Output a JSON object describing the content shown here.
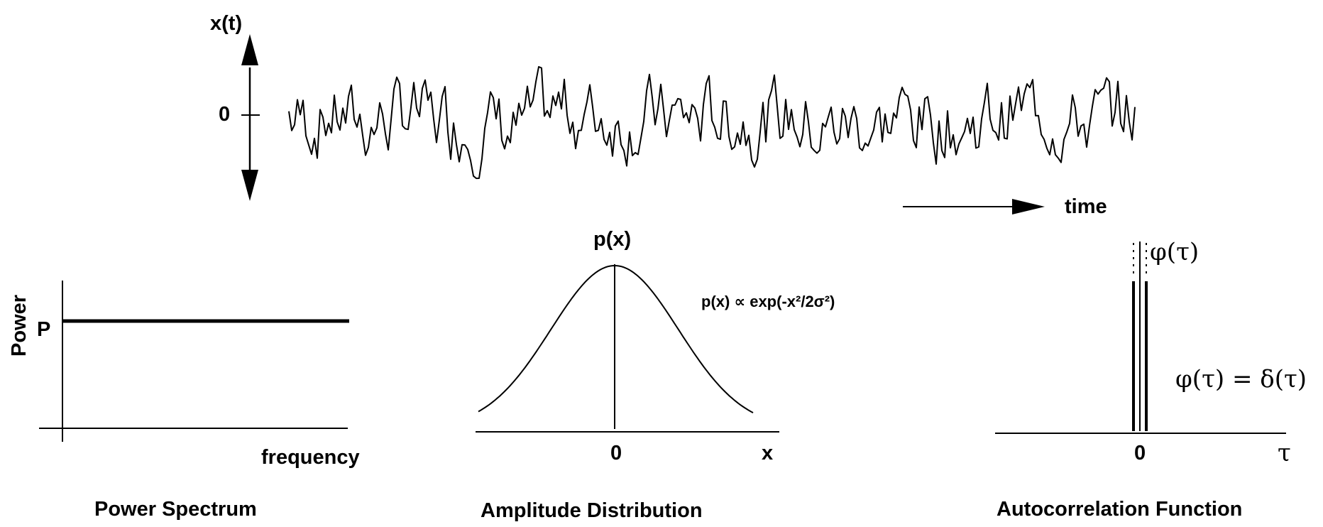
{
  "signal": {
    "ylabel": "x(t)",
    "zero_label": "0",
    "time_label": "time"
  },
  "power_spectrum": {
    "ylabel": "Power",
    "level_label": "P",
    "xlabel": "frequency",
    "title": "Power Spectrum"
  },
  "amplitude": {
    "ylabel": "p(x)",
    "formula": "p(x) ∝ exp(-x²/2σ²)",
    "zero_label": "0",
    "xlabel": "x",
    "title": "Amplitude Distribution"
  },
  "autocorrelation": {
    "peak_label": "φ(τ)",
    "formula": "φ(τ) = δ(τ)",
    "zero_label": "0",
    "xlabel": "τ",
    "title": "Autocorrelation Function"
  },
  "colors": {
    "ink": "#000000",
    "background": "#ffffff"
  }
}
